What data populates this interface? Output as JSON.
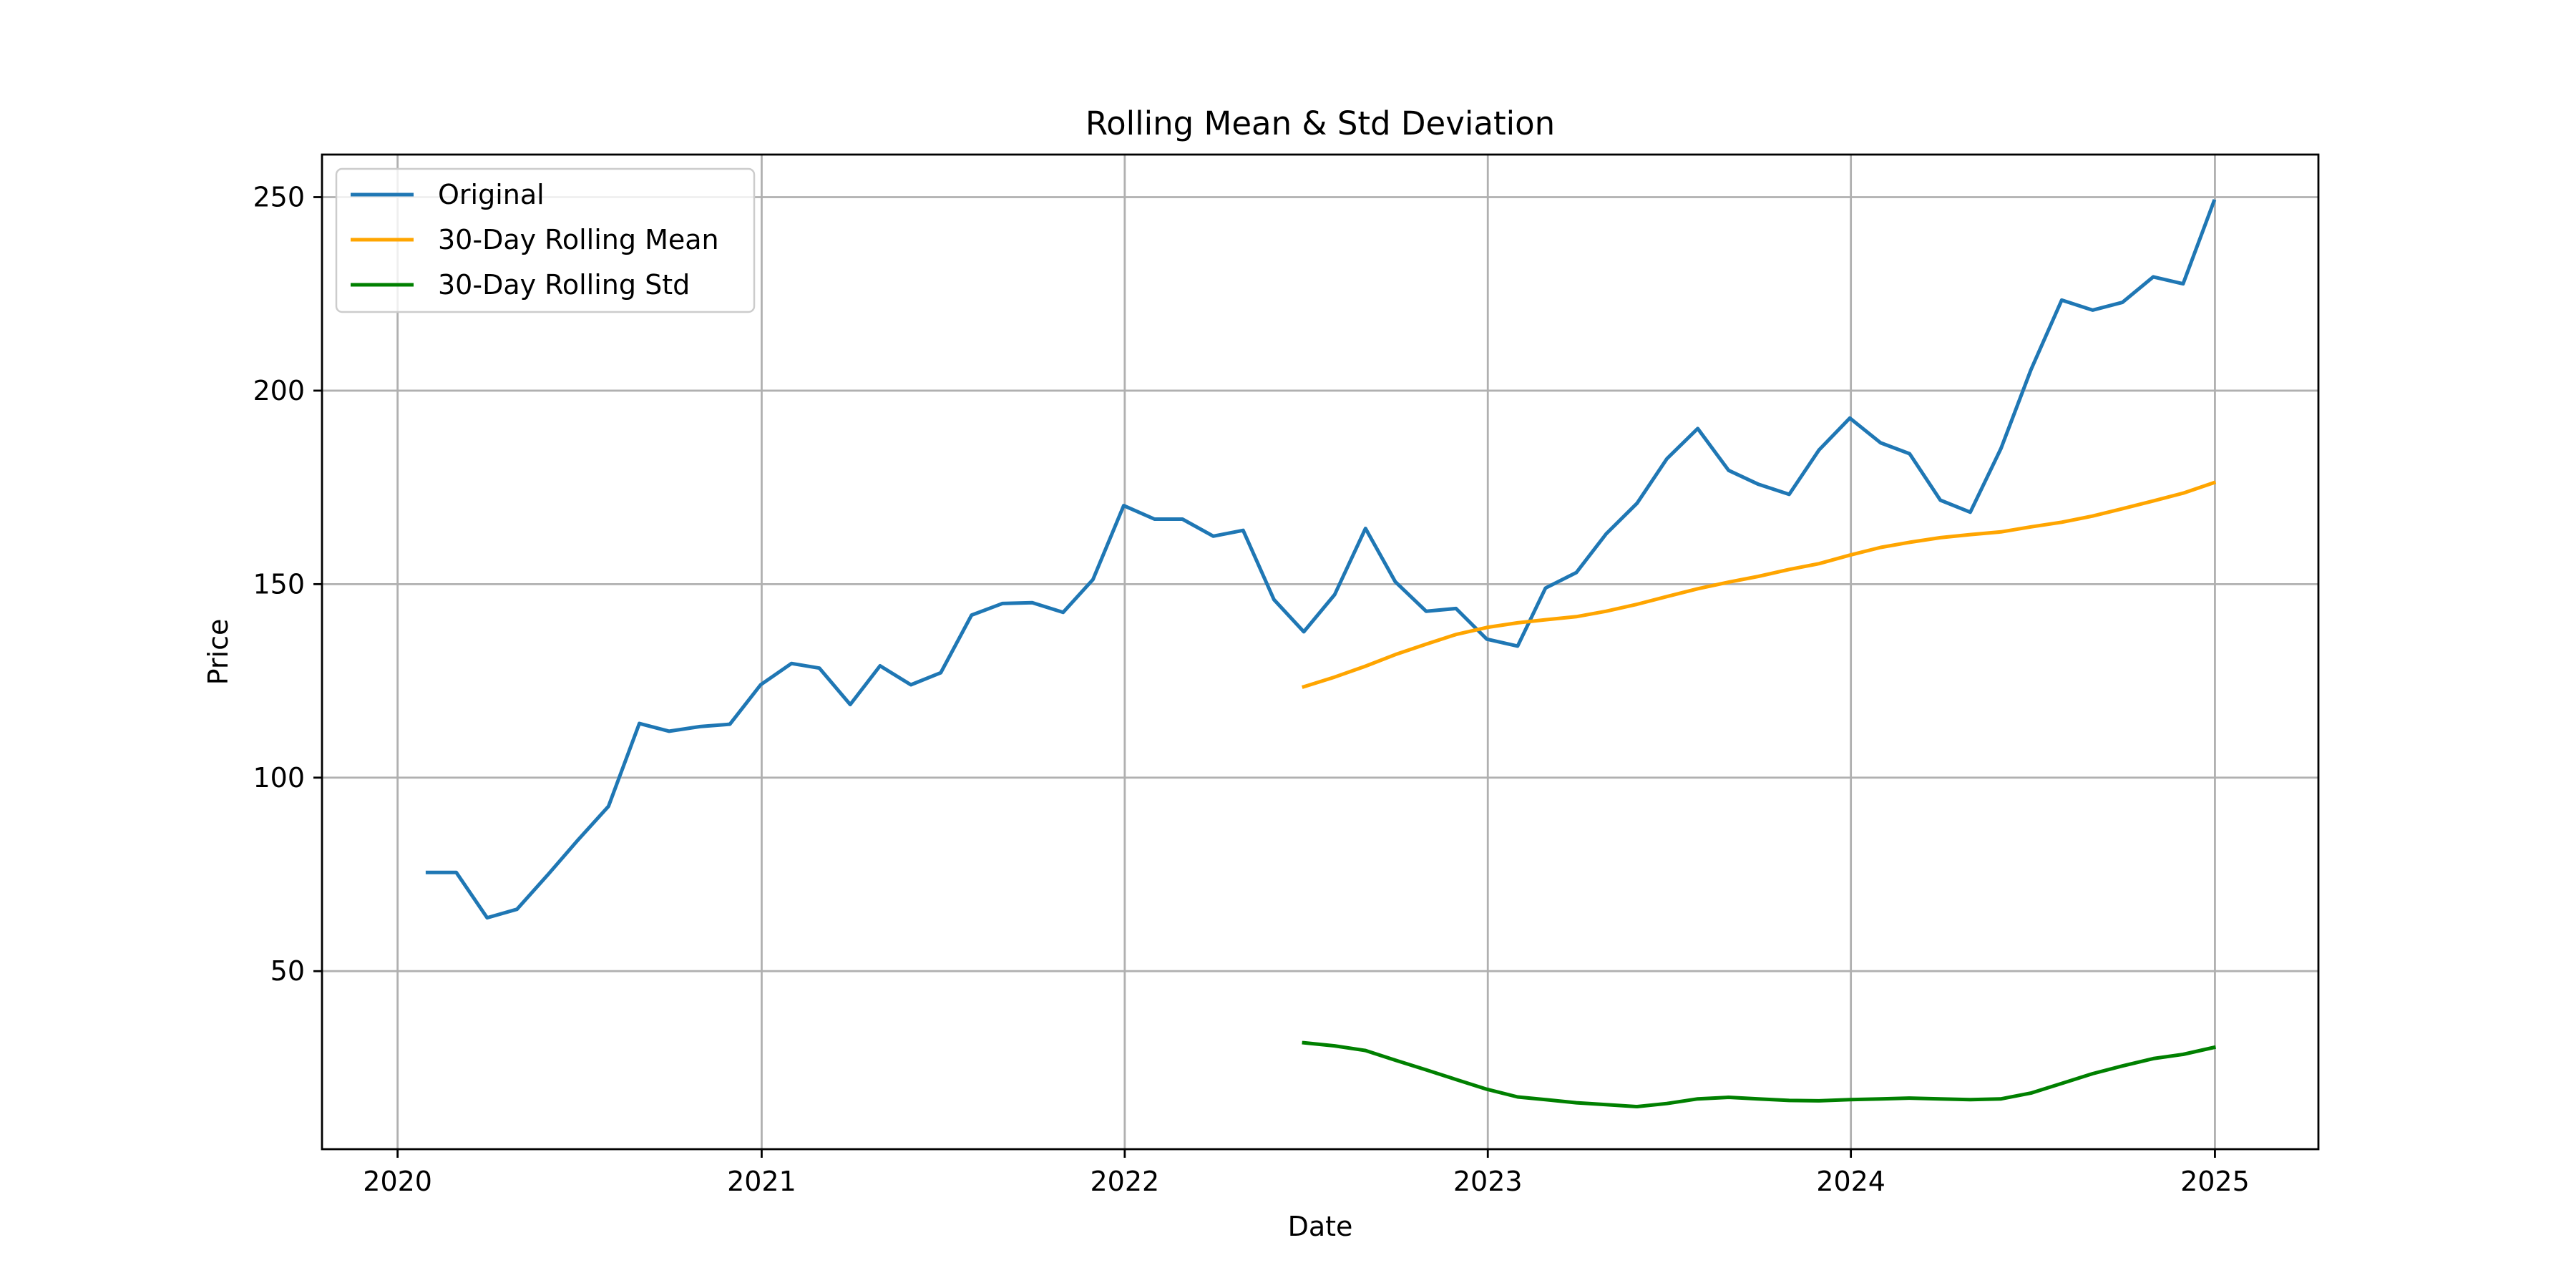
{
  "chart_data": {
    "type": "line",
    "title": "Rolling Mean & Std Deviation",
    "xlabel": "Date",
    "ylabel": "Price",
    "x_ticks": [
      2020,
      2021,
      2022,
      2023,
      2024,
      2025
    ],
    "y_ticks": [
      50,
      100,
      150,
      200,
      250
    ],
    "xlim": [
      "2019-10-17",
      "2025-04-15"
    ],
    "ylim": [
      4,
      261
    ],
    "grid": true,
    "legend_position": "top-left",
    "colors": {
      "Original": "#1f77b4",
      "30-Day Rolling Mean": "#ffa500",
      "30-Day Rolling Std": "#008000"
    },
    "series": [
      {
        "name": "Original",
        "x": [
          "2020-01-31",
          "2020-02-29",
          "2020-03-31",
          "2020-04-30",
          "2020-05-31",
          "2020-06-30",
          "2020-07-31",
          "2020-08-31",
          "2020-09-30",
          "2020-10-31",
          "2020-11-30",
          "2020-12-31",
          "2021-01-31",
          "2021-02-28",
          "2021-03-31",
          "2021-04-30",
          "2021-05-31",
          "2021-06-30",
          "2021-07-31",
          "2021-08-31",
          "2021-09-30",
          "2021-10-31",
          "2021-11-30",
          "2021-12-31",
          "2022-01-31",
          "2022-02-28",
          "2022-03-31",
          "2022-04-30",
          "2022-05-31",
          "2022-06-30",
          "2022-07-31",
          "2022-08-31",
          "2022-09-30",
          "2022-10-31",
          "2022-11-30",
          "2022-12-31",
          "2023-01-31",
          "2023-02-28",
          "2023-03-31",
          "2023-04-30",
          "2023-05-31",
          "2023-06-30",
          "2023-07-31",
          "2023-08-31",
          "2023-09-30",
          "2023-10-31",
          "2023-11-30",
          "2023-12-31",
          "2024-01-31",
          "2024-02-29",
          "2024-03-31",
          "2024-04-30",
          "2024-05-31",
          "2024-06-30",
          "2024-07-31",
          "2024-08-31",
          "2024-09-30",
          "2024-10-31",
          "2024-11-30",
          "2024-12-31"
        ],
        "y": [
          75.5,
          75.5,
          63.8,
          66.0,
          74.9,
          83.8,
          92.6,
          114.0,
          112.0,
          113.2,
          113.8,
          124.0,
          129.5,
          128.3,
          118.9,
          128.9,
          124.0,
          127.1,
          142.0,
          145.0,
          145.2,
          142.7,
          151.2,
          170.3,
          166.8,
          166.8,
          162.4,
          163.9,
          146.0,
          137.7,
          147.3,
          164.4,
          150.6,
          143.0,
          143.7,
          135.8,
          134.0,
          149.0,
          153.0,
          163.0,
          170.9,
          182.4,
          190.2,
          179.4,
          175.8,
          173.2,
          184.7,
          192.9,
          186.5,
          183.7,
          171.7,
          168.6,
          185.1,
          205.4,
          223.4,
          220.8,
          222.8,
          229.4,
          227.6,
          248.9
        ]
      },
      {
        "name": "30-Day Rolling Mean",
        "x": [
          "2022-06-30",
          "2022-07-31",
          "2022-08-31",
          "2022-09-30",
          "2022-10-31",
          "2022-11-30",
          "2022-12-31",
          "2023-01-31",
          "2023-02-28",
          "2023-03-31",
          "2023-04-30",
          "2023-05-31",
          "2023-06-30",
          "2023-07-31",
          "2023-08-31",
          "2023-09-30",
          "2023-10-31",
          "2023-11-30",
          "2023-12-31",
          "2024-01-31",
          "2024-02-29",
          "2024-03-31",
          "2024-04-30",
          "2024-05-31",
          "2024-06-30",
          "2024-07-31",
          "2024-08-31",
          "2024-09-30",
          "2024-10-31",
          "2024-11-30",
          "2024-12-31"
        ],
        "y": [
          123.5,
          126.0,
          128.8,
          131.8,
          134.5,
          137.0,
          138.8,
          140.0,
          140.8,
          141.6,
          143.0,
          144.8,
          146.8,
          148.8,
          150.5,
          152.0,
          153.8,
          155.3,
          157.5,
          159.5,
          160.8,
          162.0,
          162.8,
          163.5,
          164.8,
          166.0,
          167.6,
          169.5,
          171.5,
          173.5,
          176.2
        ]
      },
      {
        "name": "30-Day Rolling Std",
        "x": [
          "2022-06-30",
          "2022-07-31",
          "2022-08-31",
          "2022-09-30",
          "2022-10-31",
          "2022-11-30",
          "2022-12-31",
          "2023-01-31",
          "2023-02-28",
          "2023-03-31",
          "2023-04-30",
          "2023-05-31",
          "2023-06-30",
          "2023-07-31",
          "2023-08-31",
          "2023-09-30",
          "2023-10-31",
          "2023-11-30",
          "2023-12-31",
          "2024-01-31",
          "2024-02-29",
          "2024-03-31",
          "2024-04-30",
          "2024-05-31",
          "2024-06-30",
          "2024-07-31",
          "2024-08-31",
          "2024-09-30",
          "2024-10-31",
          "2024-11-30",
          "2024-12-31"
        ],
        "y": [
          31.5,
          30.7,
          29.5,
          27.0,
          24.5,
          22.0,
          19.5,
          17.5,
          16.8,
          16.0,
          15.5,
          15.0,
          15.8,
          17.0,
          17.4,
          17.0,
          16.6,
          16.5,
          16.8,
          17.0,
          17.2,
          17.0,
          16.8,
          17.0,
          18.5,
          21.0,
          23.5,
          25.5,
          27.4,
          28.5,
          30.3
        ]
      }
    ]
  }
}
